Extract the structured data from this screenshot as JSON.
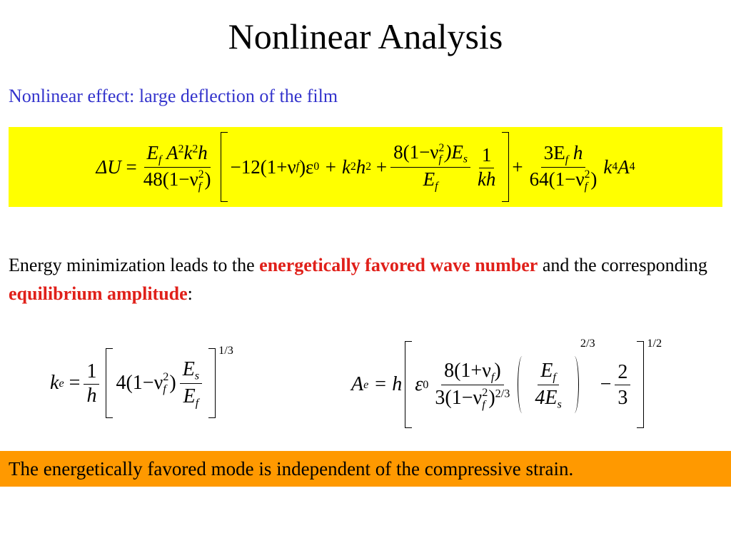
{
  "title": "Nonlinear Analysis",
  "subtitle": "Nonlinear effect: large deflection of the film",
  "equation_energy": [
    "ΔU",
    "=",
    "E",
    "f",
    "A",
    "2",
    "k",
    "2",
    "h",
    "48(1−ν",
    "2",
    "f",
    ")",
    "−12(1+ν",
    "f",
    ")ε",
    "0",
    "+ k",
    "2",
    "h",
    "2",
    "+",
    "8(1−ν",
    "2",
    "f",
    ")E",
    "s",
    "E",
    "f",
    "1",
    "kh",
    "+",
    "3E",
    "f",
    "h",
    "64(1−ν",
    "2",
    "f",
    ")",
    "k",
    "4",
    "A",
    "4"
  ],
  "paragraph": [
    "Energy minimization leads to the ",
    "energetically favored wave number",
    " and the corresponding ",
    "equilibrium amplitude",
    ":"
  ],
  "equation_wave_number": [
    "k",
    "e",
    "=",
    "1",
    "h",
    "4(1−ν",
    "2",
    "f",
    ")",
    "E",
    "s",
    "E",
    "f",
    "1/3"
  ],
  "equation_amplitude": [
    "A",
    "e",
    "= h",
    "ε",
    "0",
    "8(1+ν",
    "f",
    ")",
    "3",
    "(1−ν",
    "2",
    "f",
    ")",
    "2/3",
    "E",
    "f",
    "4E",
    "s",
    "2/3",
    "−",
    "2",
    "3",
    "1/2"
  ],
  "conclusion": "The energetically favored mode is independent of the compressive strain."
}
